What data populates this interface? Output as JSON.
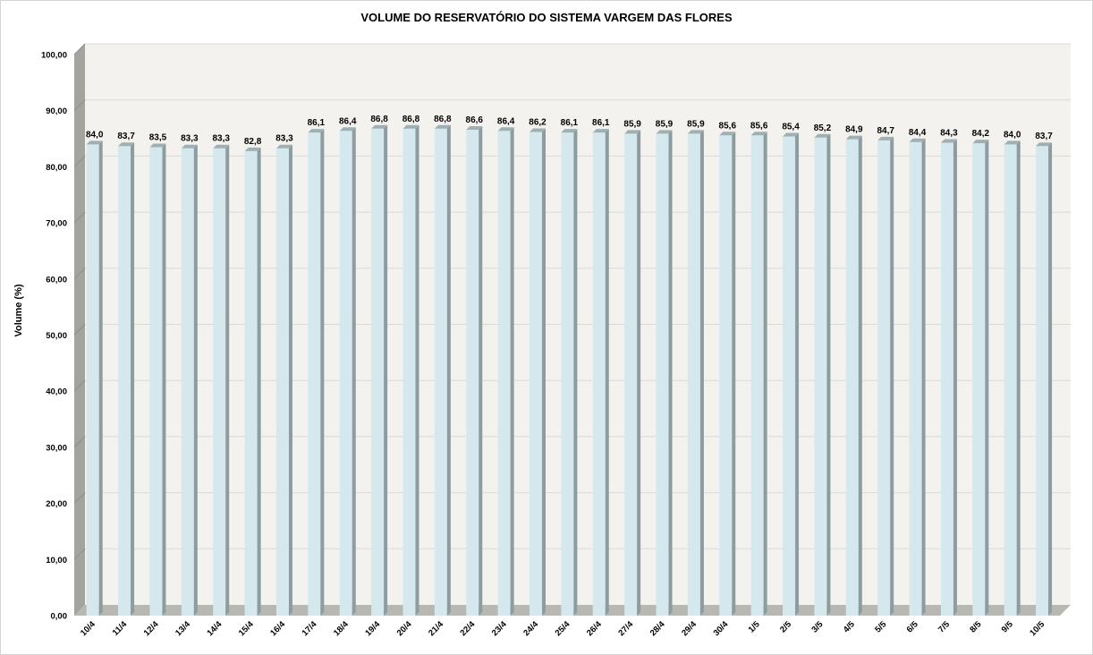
{
  "chart_data": {
    "type": "bar",
    "style": "3d",
    "title": "VOLUME DO RESERVATÓRIO DO SISTEMA VARGEM DAS FLORES",
    "xlabel": "",
    "ylabel": "Volume (%)",
    "ylim": [
      0,
      100
    ],
    "yticks": [
      "0,00",
      "10,00",
      "20,00",
      "30,00",
      "40,00",
      "50,00",
      "60,00",
      "70,00",
      "80,00",
      "90,00",
      "100,00"
    ],
    "grid": true,
    "legend": "none",
    "bar_color": "#d4e8ee",
    "wall_color": "#f3f2ee",
    "categories": [
      "10/4",
      "11/4",
      "12/4",
      "13/4",
      "14/4",
      "15/4",
      "16/4",
      "17/4",
      "18/4",
      "19/4",
      "20/4",
      "21/4",
      "22/4",
      "23/4",
      "24/4",
      "25/4",
      "26/4",
      "27/4",
      "28/4",
      "29/4",
      "30/4",
      "1/5",
      "2/5",
      "3/5",
      "4/5",
      "5/5",
      "6/5",
      "7/5",
      "8/5",
      "9/5",
      "10/5"
    ],
    "values": [
      84.0,
      83.7,
      83.5,
      83.3,
      83.3,
      82.8,
      83.3,
      86.1,
      86.4,
      86.8,
      86.8,
      86.8,
      86.6,
      86.4,
      86.2,
      86.1,
      86.1,
      85.9,
      85.9,
      85.9,
      85.6,
      85.6,
      85.4,
      85.2,
      84.9,
      84.7,
      84.4,
      84.3,
      84.2,
      84.0,
      83.7
    ],
    "data_labels": [
      "84,0",
      "83,7",
      "83,5",
      "83,3",
      "83,3",
      "82,8",
      "83,3",
      "86,1",
      "86,4",
      "86,8",
      "86,8",
      "86,8",
      "86,6",
      "86,4",
      "86,2",
      "86,1",
      "86,1",
      "85,9",
      "85,9",
      "85,9",
      "85,6",
      "85,6",
      "85,4",
      "85,2",
      "84,9",
      "84,7",
      "84,4",
      "84,3",
      "84,2",
      "84,0",
      "83,7"
    ]
  }
}
